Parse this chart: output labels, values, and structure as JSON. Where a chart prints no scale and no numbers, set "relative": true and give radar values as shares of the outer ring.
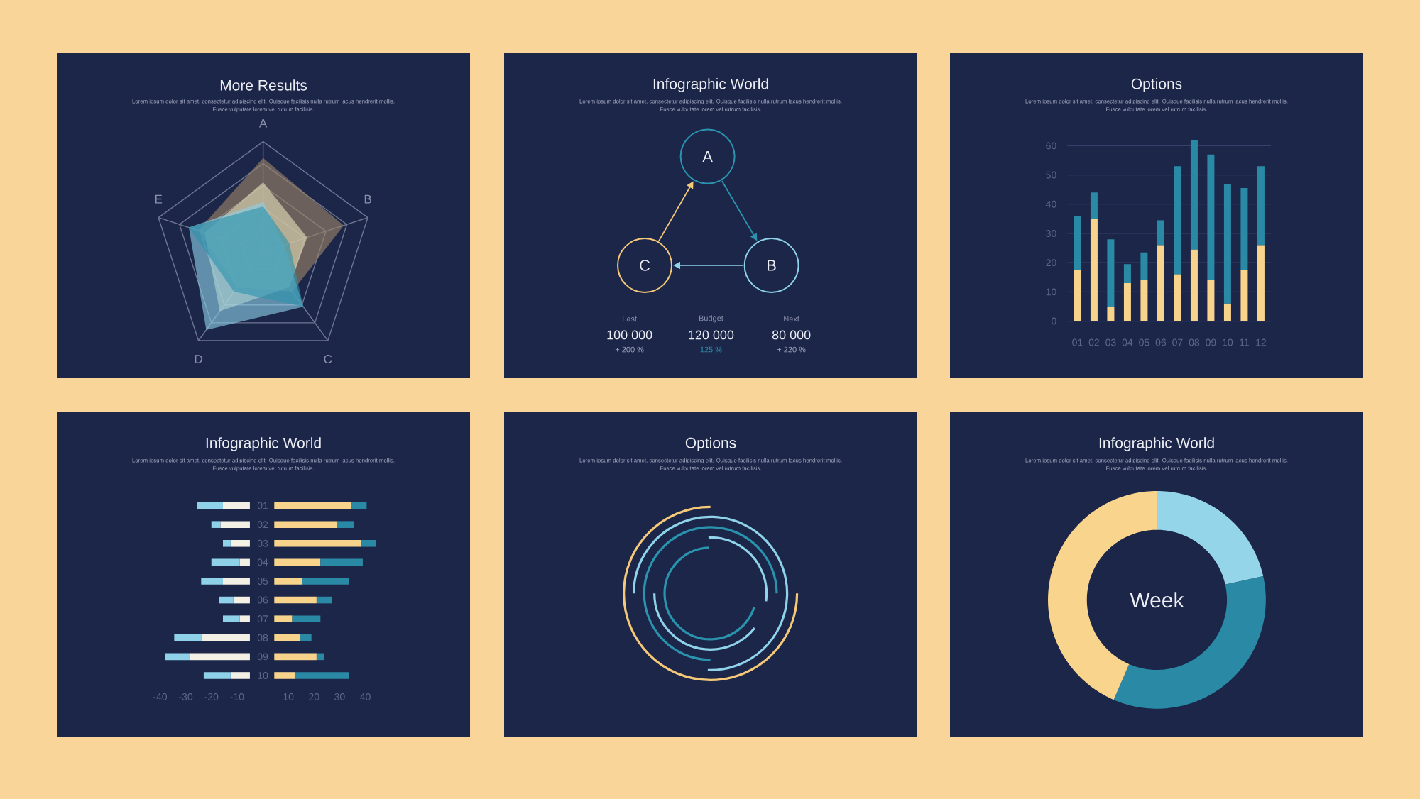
{
  "chart_data": [
    {
      "type": "radar",
      "title": "More Results",
      "subtitle": "Lorem ipsum dolor sit amet, consectetur adipiscing elit. Quisque facilisis nulla rutrum lacus hendrerit mollis. Fusce vulputate lorem vel rutrum facilisis.",
      "categories": [
        "A",
        "B",
        "C",
        "D",
        "E"
      ],
      "relative": true,
      "grid": true,
      "series": [
        {
          "color": "#9c8567",
          "values": [
            0.85,
            0.77,
            0.45,
            0.4,
            0.62
          ]
        },
        {
          "color": "#e3ddb8",
          "values": [
            0.63,
            0.42,
            0.4,
            0.67,
            0.56
          ]
        },
        {
          "color": "#8ccfe6",
          "values": [
            0.45,
            0.2,
            0.62,
            0.88,
            0.71
          ]
        },
        {
          "color": "#2b93ac",
          "values": [
            0.41,
            0.25,
            0.62,
            0.45,
            0.71
          ]
        }
      ]
    },
    {
      "type": "other",
      "title": "Infographic World",
      "subtitle": "Lorem ipsum dolor sit amet, consectetur adipiscing elit. Quisque facilisis nulla rutrum lacus hendrerit mollis. Fusce vulputate lorem vel rutrum facilisis.",
      "annotations": [
        "A",
        "B",
        "C",
        "Last",
        "100 000",
        "+ 200 %",
        "Budget",
        "120 000",
        "125 %",
        "Next",
        "80 000",
        "+ 220 %"
      ]
    },
    {
      "type": "bar",
      "title": "Options",
      "subtitle": "Lorem ipsum dolor sit amet, consectetur adipiscing elit. Quisque facilisis nulla rutrum lacus hendrerit mollis. Fusce vulputate lorem vel rutrum facilisis.",
      "categories": [
        "01",
        "02",
        "03",
        "04",
        "05",
        "06",
        "07",
        "08",
        "09",
        "10",
        "11",
        "12"
      ],
      "stacked": true,
      "series": [
        {
          "color": "#f8d38c",
          "values": [
            17.5,
            35,
            5,
            13,
            14,
            26,
            16,
            24.5,
            14,
            6,
            17.5,
            26
          ]
        },
        {
          "color": "#2a8aa5",
          "values": [
            18.5,
            9,
            23,
            6.5,
            9.5,
            8.5,
            37,
            37.5,
            43,
            41,
            28,
            27
          ]
        }
      ],
      "ylim": [
        0,
        63
      ],
      "yticks": [
        0,
        10,
        20,
        30,
        40,
        50,
        60
      ],
      "grid": "y"
    },
    {
      "type": "bar",
      "orientation": "horizontal",
      "title": "Infographic World",
      "subtitle": "Lorem ipsum dolor sit amet, consectetur adipiscing elit. Quisque facilisis nulla rutrum lacus hendrerit mollis. Fusce vulputate lorem vel rutrum facilisis.",
      "categories": [
        "01",
        "02",
        "03",
        "04",
        "05",
        "06",
        "07",
        "08",
        "09",
        "10"
      ],
      "series": [
        {
          "color": "#f3f0e6",
          "base": [
            -5,
            -5,
            -5,
            -5,
            -5,
            -5,
            -5,
            -5,
            -5,
            -5
          ],
          "values": [
            -10.5,
            -11.5,
            -7.5,
            -4,
            -10.5,
            -6.5,
            -4,
            -19,
            -23.5,
            -7.5
          ]
        },
        {
          "color": "#8fd1e9",
          "base": [
            -15.5,
            -16.5,
            -12.5,
            -9,
            -15.5,
            -11.5,
            -9,
            -24,
            -28.5,
            -12.5
          ],
          "values": [
            -10,
            -3.5,
            -3,
            -11,
            -8.5,
            -5.5,
            -6.5,
            -10.5,
            -9.5,
            -10.5
          ]
        },
        {
          "color": "#f8d38c",
          "base": [
            4.5,
            4.5,
            4.5,
            4.5,
            4.5,
            4.5,
            4.5,
            4.5,
            4.5,
            4.5
          ],
          "values": [
            30,
            24.5,
            34,
            18,
            11,
            16.5,
            7,
            10,
            16.5,
            8
          ]
        },
        {
          "color": "#2a8aa5",
          "base": [
            34.5,
            29,
            38.5,
            22.5,
            15.5,
            21,
            11.5,
            14.5,
            21,
            12.5
          ],
          "values": [
            6,
            6.5,
            5.5,
            16.5,
            18,
            6,
            11,
            4.5,
            3,
            21
          ]
        }
      ],
      "xlim": [
        -40,
        45
      ],
      "xticks": [
        -40,
        -30,
        -20,
        -10,
        10,
        20,
        30,
        40
      ]
    },
    {
      "type": "other",
      "title": "Options",
      "subtitle": "Lorem ipsum dolor sit amet, consectetur adipiscing elit. Quisque facilisis nulla rutrum lacus hendrerit mollis. Fusce vulputate lorem vel rutrum facilisis."
    },
    {
      "type": "donut",
      "title": "Infographic World",
      "subtitle": "Lorem ipsum dolor sit amet, consectetur adipiscing elit. Quisque facilisis nulla rutrum lacus hendrerit mollis. Fusce vulputate lorem vel rutrum facilisis.",
      "categories": [
        null,
        null,
        null
      ],
      "values": [
        21.5,
        35,
        43.5
      ],
      "colors": [
        "#95d5e9",
        "#2a8aa5",
        "#f9d48d"
      ],
      "annotations": [
        "Week"
      ]
    }
  ]
}
